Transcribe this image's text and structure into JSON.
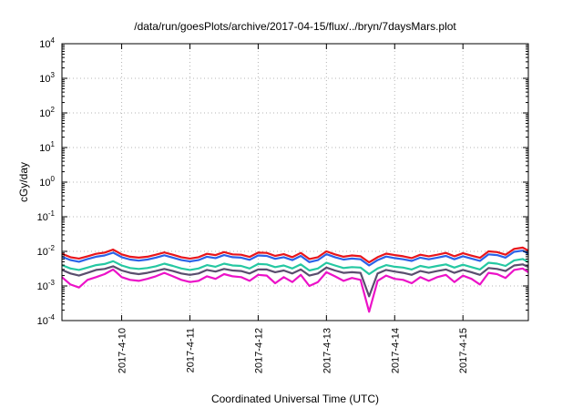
{
  "chart_data": {
    "type": "line",
    "title": "/data/run/goesPlots/archive/2017-04-15/flux/../bryn/7daysMars.plot",
    "xlabel": "Coordinated Universal Time (UTC)",
    "ylabel": "cGy/day",
    "y_scale": "log",
    "ylim": [
      0.0001,
      10000
    ],
    "y_ticks": [
      {
        "value": 10000,
        "base": "10",
        "exp": "4"
      },
      {
        "value": 1000,
        "base": "10",
        "exp": "3"
      },
      {
        "value": 100,
        "base": "10",
        "exp": "2"
      },
      {
        "value": 10,
        "base": "10",
        "exp": "1"
      },
      {
        "value": 1,
        "base": "10",
        "exp": "0"
      },
      {
        "value": 0.1,
        "base": "10",
        "exp": "-1"
      },
      {
        "value": 0.01,
        "base": "10",
        "exp": "-2"
      },
      {
        "value": 0.001,
        "base": "10",
        "exp": "-3"
      },
      {
        "value": 0.0001,
        "base": "10",
        "exp": "-4"
      }
    ],
    "xlim": [
      "2017-04-09 03:00",
      "2017-04-15 23:00"
    ],
    "x_ticks": [
      {
        "value": "2017-04-10 00:00",
        "label": "2017-4-10"
      },
      {
        "value": "2017-04-11 00:00",
        "label": "2017-4-11"
      },
      {
        "value": "2017-04-12 00:00",
        "label": "2017-4-12"
      },
      {
        "value": "2017-04-13 00:00",
        "label": "2017-4-13"
      },
      {
        "value": "2017-04-14 00:00",
        "label": "2017-4-14"
      },
      {
        "value": "2017-04-15 00:00",
        "label": "2017-4-15"
      }
    ],
    "grid": true,
    "legend": "none",
    "x": [
      "2017-04-09 03:00",
      "2017-04-09 06:00",
      "2017-04-09 09:00",
      "2017-04-09 12:00",
      "2017-04-09 15:00",
      "2017-04-09 18:00",
      "2017-04-09 21:00",
      "2017-04-10 00:00",
      "2017-04-10 03:00",
      "2017-04-10 06:00",
      "2017-04-10 09:00",
      "2017-04-10 12:00",
      "2017-04-10 15:00",
      "2017-04-10 18:00",
      "2017-04-10 21:00",
      "2017-04-11 00:00",
      "2017-04-11 03:00",
      "2017-04-11 06:00",
      "2017-04-11 09:00",
      "2017-04-11 12:00",
      "2017-04-11 15:00",
      "2017-04-11 18:00",
      "2017-04-11 21:00",
      "2017-04-12 00:00",
      "2017-04-12 03:00",
      "2017-04-12 06:00",
      "2017-04-12 09:00",
      "2017-04-12 12:00",
      "2017-04-12 15:00",
      "2017-04-12 18:00",
      "2017-04-12 21:00",
      "2017-04-13 00:00",
      "2017-04-13 03:00",
      "2017-04-13 06:00",
      "2017-04-13 09:00",
      "2017-04-13 12:00",
      "2017-04-13 15:00",
      "2017-04-13 18:00",
      "2017-04-13 21:00",
      "2017-04-14 00:00",
      "2017-04-14 03:00",
      "2017-04-14 06:00",
      "2017-04-14 09:00",
      "2017-04-14 12:00",
      "2017-04-14 15:00",
      "2017-04-14 18:00",
      "2017-04-14 21:00",
      "2017-04-15 00:00",
      "2017-04-15 03:00",
      "2017-04-15 06:00",
      "2017-04-15 09:00",
      "2017-04-15 12:00",
      "2017-04-15 15:00",
      "2017-04-15 18:00",
      "2017-04-15 21:00",
      "2017-04-15 23:00"
    ],
    "series": [
      {
        "color": "#e8151b",
        "values": [
          0.0085,
          0.0068,
          0.0062,
          0.0072,
          0.0085,
          0.0092,
          0.0112,
          0.0082,
          0.007,
          0.0066,
          0.007,
          0.008,
          0.0093,
          0.008,
          0.0068,
          0.0062,
          0.0068,
          0.0085,
          0.0078,
          0.0095,
          0.0082,
          0.008,
          0.0069,
          0.0092,
          0.009,
          0.0074,
          0.0083,
          0.0068,
          0.009,
          0.006,
          0.0068,
          0.01,
          0.0082,
          0.007,
          0.0076,
          0.0072,
          0.0048,
          0.0068,
          0.0086,
          0.0078,
          0.0072,
          0.0064,
          0.008,
          0.0072,
          0.008,
          0.009,
          0.0072,
          0.0088,
          0.0075,
          0.0065,
          0.01,
          0.0095,
          0.008,
          0.0118,
          0.0128,
          0.0105
        ]
      },
      {
        "color": "#2b62e8",
        "values": [
          0.007,
          0.0056,
          0.005,
          0.006,
          0.007,
          0.0076,
          0.0092,
          0.0068,
          0.0058,
          0.0054,
          0.0058,
          0.0066,
          0.0077,
          0.0066,
          0.0056,
          0.0051,
          0.0056,
          0.007,
          0.0064,
          0.0078,
          0.0068,
          0.0066,
          0.0057,
          0.0076,
          0.0074,
          0.0061,
          0.0068,
          0.0056,
          0.0074,
          0.0049,
          0.0056,
          0.0083,
          0.0068,
          0.0058,
          0.0062,
          0.0059,
          0.0039,
          0.0056,
          0.0071,
          0.0064,
          0.0059,
          0.0053,
          0.0066,
          0.0059,
          0.0066,
          0.0074,
          0.0059,
          0.0072,
          0.0062,
          0.0053,
          0.0082,
          0.0078,
          0.0066,
          0.0097,
          0.0105,
          0.0086
        ]
      },
      {
        "color": "#25c8a2",
        "values": [
          0.004,
          0.0032,
          0.0029,
          0.0034,
          0.004,
          0.0043,
          0.0052,
          0.0039,
          0.0033,
          0.0031,
          0.0033,
          0.0037,
          0.0044,
          0.0038,
          0.0032,
          0.0029,
          0.0032,
          0.004,
          0.0036,
          0.0044,
          0.0039,
          0.0038,
          0.0032,
          0.0043,
          0.0042,
          0.0035,
          0.0039,
          0.0032,
          0.0042,
          0.0028,
          0.0032,
          0.0047,
          0.0039,
          0.0033,
          0.0035,
          0.0034,
          0.0022,
          0.0032,
          0.004,
          0.0036,
          0.0034,
          0.003,
          0.0038,
          0.0034,
          0.0038,
          0.0042,
          0.0034,
          0.0041,
          0.0035,
          0.003,
          0.0047,
          0.0044,
          0.0038,
          0.0055,
          0.006,
          0.0049
        ]
      },
      {
        "color": "#5a4e6e",
        "values": [
          0.0029,
          0.0023,
          0.002,
          0.0024,
          0.0029,
          0.0031,
          0.0037,
          0.0028,
          0.0024,
          0.0022,
          0.0024,
          0.0027,
          0.0031,
          0.0027,
          0.0023,
          0.0021,
          0.0023,
          0.0029,
          0.0026,
          0.0031,
          0.0028,
          0.0027,
          0.0023,
          0.003,
          0.003,
          0.0025,
          0.0028,
          0.0023,
          0.003,
          0.002,
          0.0023,
          0.0034,
          0.0028,
          0.0024,
          0.0025,
          0.0024,
          0.0005,
          0.0023,
          0.0029,
          0.0026,
          0.0024,
          0.0021,
          0.0027,
          0.0024,
          0.0027,
          0.003,
          0.0024,
          0.0029,
          0.0025,
          0.0021,
          0.0033,
          0.0031,
          0.0027,
          0.0039,
          0.0042,
          0.0035
        ]
      },
      {
        "color": "#ec12c8",
        "values": [
          0.0018,
          0.0011,
          0.0009,
          0.0015,
          0.0018,
          0.0022,
          0.003,
          0.0018,
          0.0015,
          0.0014,
          0.0016,
          0.0019,
          0.0024,
          0.0019,
          0.0015,
          0.0013,
          0.0014,
          0.0019,
          0.0016,
          0.0022,
          0.0019,
          0.0018,
          0.0014,
          0.0021,
          0.002,
          0.0012,
          0.0018,
          0.0013,
          0.0021,
          0.001,
          0.0013,
          0.0025,
          0.0019,
          0.0014,
          0.0017,
          0.0015,
          0.00018,
          0.0014,
          0.002,
          0.0016,
          0.0015,
          0.0012,
          0.0018,
          0.0014,
          0.0018,
          0.0021,
          0.0013,
          0.002,
          0.0016,
          0.0011,
          0.0024,
          0.0022,
          0.0017,
          0.0029,
          0.0032,
          0.0025
        ]
      }
    ]
  }
}
